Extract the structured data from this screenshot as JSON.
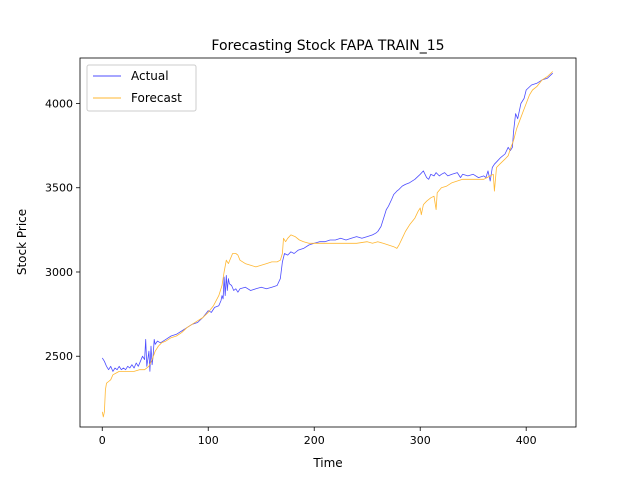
{
  "chart_data": {
    "type": "line",
    "title": "Forecasting Stock FAPA TRAIN_15",
    "xlabel": "Time",
    "ylabel": "Stock Price",
    "xlim": [
      -21,
      447
    ],
    "ylim": [
      2080,
      4270
    ],
    "xticks": [
      0,
      100,
      200,
      300,
      400
    ],
    "yticks": [
      2500,
      3000,
      3500,
      4000
    ],
    "legend_position": "upper-left",
    "grid": false,
    "series": [
      {
        "name": "Actual",
        "color": "#4d4dff",
        "points": [
          [
            0,
            2490
          ],
          [
            2,
            2470
          ],
          [
            4,
            2440
          ],
          [
            6,
            2420
          ],
          [
            8,
            2440
          ],
          [
            10,
            2410
          ],
          [
            12,
            2430
          ],
          [
            14,
            2420
          ],
          [
            16,
            2440
          ],
          [
            18,
            2420
          ],
          [
            20,
            2430
          ],
          [
            22,
            2420
          ],
          [
            24,
            2440
          ],
          [
            26,
            2430
          ],
          [
            28,
            2450
          ],
          [
            30,
            2430
          ],
          [
            32,
            2460
          ],
          [
            34,
            2440
          ],
          [
            36,
            2470
          ],
          [
            38,
            2500
          ],
          [
            40,
            2480
          ],
          [
            41,
            2600
          ],
          [
            42,
            2440
          ],
          [
            43,
            2480
          ],
          [
            44,
            2530
          ],
          [
            45,
            2410
          ],
          [
            46,
            2560
          ],
          [
            47,
            2450
          ],
          [
            48,
            2500
          ],
          [
            49,
            2600
          ],
          [
            50,
            2570
          ],
          [
            52,
            2590
          ],
          [
            55,
            2580
          ],
          [
            60,
            2600
          ],
          [
            65,
            2620
          ],
          [
            70,
            2630
          ],
          [
            75,
            2650
          ],
          [
            80,
            2670
          ],
          [
            85,
            2690
          ],
          [
            90,
            2700
          ],
          [
            95,
            2730
          ],
          [
            100,
            2770
          ],
          [
            103,
            2760
          ],
          [
            106,
            2790
          ],
          [
            110,
            2800
          ],
          [
            112,
            2830
          ],
          [
            113,
            2860
          ],
          [
            114,
            2840
          ],
          [
            115,
            2970
          ],
          [
            116,
            2860
          ],
          [
            117,
            2980
          ],
          [
            118,
            2890
          ],
          [
            119,
            2960
          ],
          [
            120,
            2930
          ],
          [
            122,
            2920
          ],
          [
            124,
            2890
          ],
          [
            126,
            2900
          ],
          [
            128,
            2880
          ],
          [
            130,
            2900
          ],
          [
            135,
            2910
          ],
          [
            140,
            2890
          ],
          [
            145,
            2900
          ],
          [
            150,
            2910
          ],
          [
            155,
            2900
          ],
          [
            160,
            2910
          ],
          [
            165,
            2920
          ],
          [
            168,
            2960
          ],
          [
            170,
            3060
          ],
          [
            172,
            3110
          ],
          [
            175,
            3100
          ],
          [
            178,
            3120
          ],
          [
            181,
            3110
          ],
          [
            185,
            3130
          ],
          [
            190,
            3140
          ],
          [
            195,
            3160
          ],
          [
            200,
            3170
          ],
          [
            205,
            3180
          ],
          [
            210,
            3180
          ],
          [
            215,
            3190
          ],
          [
            220,
            3190
          ],
          [
            225,
            3200
          ],
          [
            230,
            3190
          ],
          [
            235,
            3200
          ],
          [
            240,
            3210
          ],
          [
            245,
            3200
          ],
          [
            250,
            3210
          ],
          [
            255,
            3220
          ],
          [
            258,
            3230
          ],
          [
            260,
            3240
          ],
          [
            263,
            3270
          ],
          [
            266,
            3330
          ],
          [
            268,
            3370
          ],
          [
            270,
            3390
          ],
          [
            273,
            3430
          ],
          [
            275,
            3460
          ],
          [
            278,
            3480
          ],
          [
            280,
            3490
          ],
          [
            283,
            3510
          ],
          [
            286,
            3520
          ],
          [
            290,
            3530
          ],
          [
            295,
            3550
          ],
          [
            300,
            3580
          ],
          [
            303,
            3600
          ],
          [
            306,
            3560
          ],
          [
            308,
            3550
          ],
          [
            310,
            3580
          ],
          [
            313,
            3570
          ],
          [
            315,
            3590
          ],
          [
            318,
            3570
          ],
          [
            320,
            3580
          ],
          [
            323,
            3590
          ],
          [
            326,
            3570
          ],
          [
            330,
            3580
          ],
          [
            335,
            3590
          ],
          [
            338,
            3560
          ],
          [
            340,
            3580
          ],
          [
            345,
            3570
          ],
          [
            350,
            3580
          ],
          [
            355,
            3560
          ],
          [
            360,
            3570
          ],
          [
            362,
            3560
          ],
          [
            364,
            3600
          ],
          [
            366,
            3540
          ],
          [
            368,
            3620
          ],
          [
            370,
            3640
          ],
          [
            373,
            3660
          ],
          [
            376,
            3680
          ],
          [
            380,
            3700
          ],
          [
            383,
            3740
          ],
          [
            385,
            3720
          ],
          [
            387,
            3740
          ],
          [
            388,
            3830
          ],
          [
            390,
            3940
          ],
          [
            392,
            3910
          ],
          [
            395,
            4000
          ],
          [
            398,
            4030
          ],
          [
            400,
            4080
          ],
          [
            405,
            4110
          ],
          [
            410,
            4120
          ],
          [
            415,
            4140
          ],
          [
            420,
            4150
          ],
          [
            425,
            4180
          ]
        ]
      },
      {
        "name": "Forecast",
        "color": "#ffb732",
        "points": [
          [
            0,
            2170
          ],
          [
            1,
            2140
          ],
          [
            2,
            2170
          ],
          [
            3,
            2300
          ],
          [
            4,
            2340
          ],
          [
            6,
            2350
          ],
          [
            8,
            2360
          ],
          [
            10,
            2390
          ],
          [
            13,
            2400
          ],
          [
            16,
            2410
          ],
          [
            20,
            2410
          ],
          [
            25,
            2410
          ],
          [
            30,
            2410
          ],
          [
            35,
            2420
          ],
          [
            40,
            2420
          ],
          [
            44,
            2440
          ],
          [
            47,
            2480
          ],
          [
            50,
            2530
          ],
          [
            53,
            2560
          ],
          [
            56,
            2580
          ],
          [
            60,
            2590
          ],
          [
            65,
            2610
          ],
          [
            70,
            2620
          ],
          [
            75,
            2640
          ],
          [
            80,
            2670
          ],
          [
            85,
            2690
          ],
          [
            90,
            2710
          ],
          [
            95,
            2730
          ],
          [
            100,
            2760
          ],
          [
            105,
            2800
          ],
          [
            110,
            2860
          ],
          [
            113,
            2920
          ],
          [
            115,
            3000
          ],
          [
            117,
            3070
          ],
          [
            119,
            3050
          ],
          [
            121,
            3080
          ],
          [
            123,
            3110
          ],
          [
            126,
            3110
          ],
          [
            128,
            3100
          ],
          [
            130,
            3070
          ],
          [
            135,
            3050
          ],
          [
            140,
            3040
          ],
          [
            145,
            3030
          ],
          [
            150,
            3040
          ],
          [
            155,
            3050
          ],
          [
            160,
            3060
          ],
          [
            165,
            3060
          ],
          [
            168,
            3070
          ],
          [
            170,
            3110
          ],
          [
            171,
            3200
          ],
          [
            173,
            3180
          ],
          [
            175,
            3200
          ],
          [
            178,
            3220
          ],
          [
            182,
            3210
          ],
          [
            186,
            3190
          ],
          [
            190,
            3180
          ],
          [
            195,
            3170
          ],
          [
            200,
            3170
          ],
          [
            205,
            3170
          ],
          [
            210,
            3170
          ],
          [
            215,
            3170
          ],
          [
            220,
            3170
          ],
          [
            230,
            3170
          ],
          [
            240,
            3170
          ],
          [
            250,
            3180
          ],
          [
            255,
            3170
          ],
          [
            260,
            3180
          ],
          [
            265,
            3170
          ],
          [
            270,
            3160
          ],
          [
            275,
            3150
          ],
          [
            278,
            3140
          ],
          [
            280,
            3160
          ],
          [
            283,
            3200
          ],
          [
            286,
            3240
          ],
          [
            290,
            3280
          ],
          [
            295,
            3320
          ],
          [
            298,
            3360
          ],
          [
            300,
            3380
          ],
          [
            301,
            3340
          ],
          [
            303,
            3400
          ],
          [
            306,
            3420
          ],
          [
            310,
            3440
          ],
          [
            313,
            3450
          ],
          [
            315,
            3370
          ],
          [
            316,
            3470
          ],
          [
            320,
            3500
          ],
          [
            325,
            3510
          ],
          [
            330,
            3530
          ],
          [
            335,
            3540
          ],
          [
            340,
            3550
          ],
          [
            345,
            3550
          ],
          [
            350,
            3550
          ],
          [
            355,
            3550
          ],
          [
            360,
            3550
          ],
          [
            363,
            3560
          ],
          [
            366,
            3570
          ],
          [
            369,
            3580
          ],
          [
            370,
            3480
          ],
          [
            372,
            3620
          ],
          [
            375,
            3640
          ],
          [
            380,
            3670
          ],
          [
            383,
            3690
          ],
          [
            385,
            3730
          ],
          [
            388,
            3780
          ],
          [
            391,
            3850
          ],
          [
            394,
            3900
          ],
          [
            397,
            3950
          ],
          [
            400,
            4000
          ],
          [
            403,
            4050
          ],
          [
            406,
            4080
          ],
          [
            410,
            4100
          ],
          [
            415,
            4140
          ],
          [
            420,
            4160
          ],
          [
            425,
            4190
          ]
        ]
      }
    ]
  }
}
